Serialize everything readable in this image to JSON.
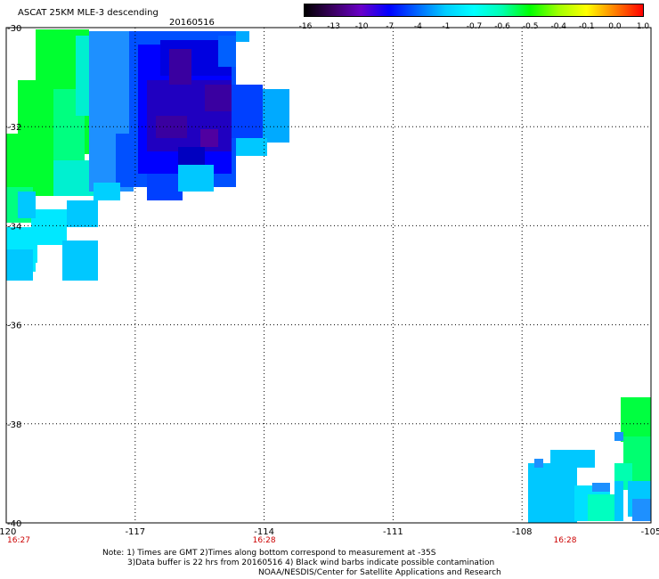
{
  "header": {
    "title": "ASCAT 25KM MLE-3 descending",
    "date": "20160516"
  },
  "colorbar": {
    "labels": [
      "-16",
      "-13",
      "-10",
      "-7",
      "-4",
      "-1",
      "-0.7",
      "-0.6",
      "-0.5",
      "-0.4",
      "-0.1",
      "0.0",
      "1.0"
    ],
    "colors": [
      "#000000",
      "#3a0060",
      "#6a00c8",
      "#0000ff",
      "#0066ff",
      "#00ccff",
      "#00ffff",
      "#00ffb0",
      "#00ff00",
      "#a0ff00",
      "#ffff00",
      "#ff8000",
      "#ff0000"
    ]
  },
  "map": {
    "lon_range": [
      -120,
      -105
    ],
    "lat_range": [
      -40,
      -30
    ],
    "lon_ticks": [
      "-120",
      "-117",
      "-114",
      "-111",
      "-108",
      "-105"
    ],
    "lat_ticks": [
      "-30",
      "-32",
      "-34",
      "-36",
      "-38",
      "-40"
    ],
    "time_labels": [
      {
        "text": "16:27",
        "lon": -120
      },
      {
        "text": "16:28",
        "lon": -114
      },
      {
        "text": "16:28",
        "lon": -107
      }
    ]
  },
  "notes": {
    "line1": "Note: 1) Times are GMT 2)Times along bottom correspond to measurement at -35S",
    "line2": "3)Data buffer is 22 hrs from 20160516 4) Black wind barbs indicate possible contamination",
    "line3": "NOAA/NESDIS/Center for Satellite Applications and Research"
  }
}
